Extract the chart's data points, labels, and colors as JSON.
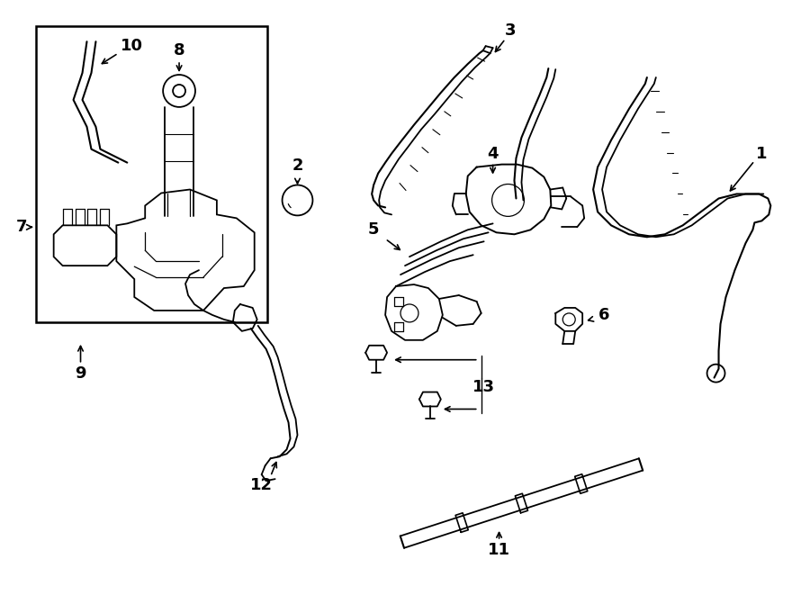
{
  "bg_color": "#ffffff",
  "line_color": "#000000",
  "fig_width": 9.0,
  "fig_height": 6.61,
  "dpi": 100,
  "lw": 1.3,
  "label_fontsize": 13
}
